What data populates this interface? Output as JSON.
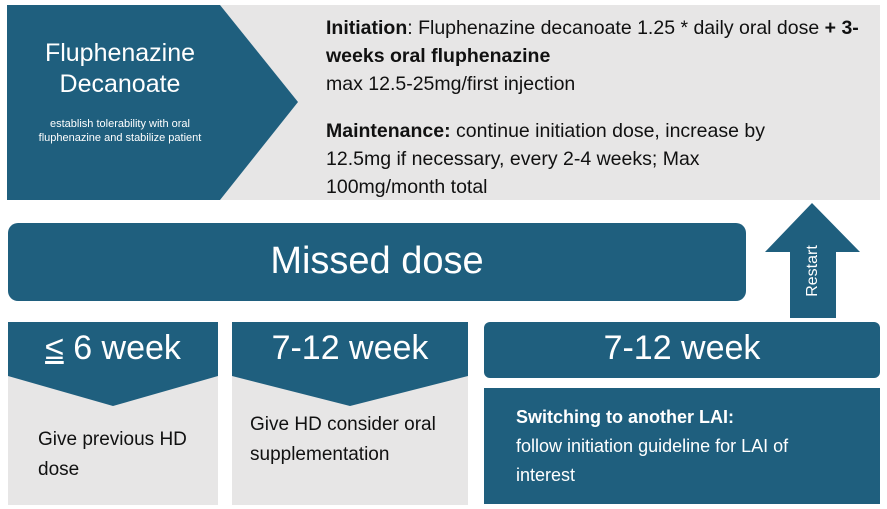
{
  "header": {
    "title": "Fluphenazine Decanoate",
    "subtitle": "establish tolerability with oral fluphenazine  and stabilize patient"
  },
  "initiation": {
    "label": "Initiation",
    "text1": ": Fluphenazine decanoate 1.25 * daily oral dose",
    "bold": "+ 3-weeks oral fluphenazine",
    "text2": "max 12.5-25mg/first injection"
  },
  "maintenance": {
    "label": "Maintenance:",
    "text": "continue initiation dose, increase by 12.5mg if necessary, every 2-4 weeks; Max 100mg/month total"
  },
  "missed_dose": "Missed dose",
  "restart": "Restart",
  "columns": [
    {
      "symbol": "≤",
      "header": "6 week",
      "body": "Give previous HD dose"
    },
    {
      "header": "7-12 week",
      "body": "Give HD consider oral supplementation"
    },
    {
      "header": "7-12 week",
      "body_bold": "Switching to another LAI:",
      "body": "follow initiation guideline for LAI of interest"
    }
  ]
}
